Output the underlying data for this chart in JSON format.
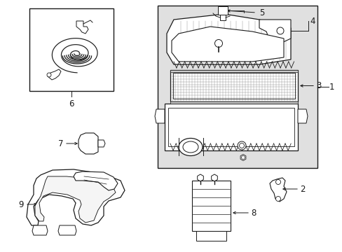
{
  "bg_color": "#ffffff",
  "line_color": "#1a1a1a",
  "diagram_bg": "#e0e0e0",
  "figsize": [
    4.89,
    3.6
  ],
  "dpi": 100
}
